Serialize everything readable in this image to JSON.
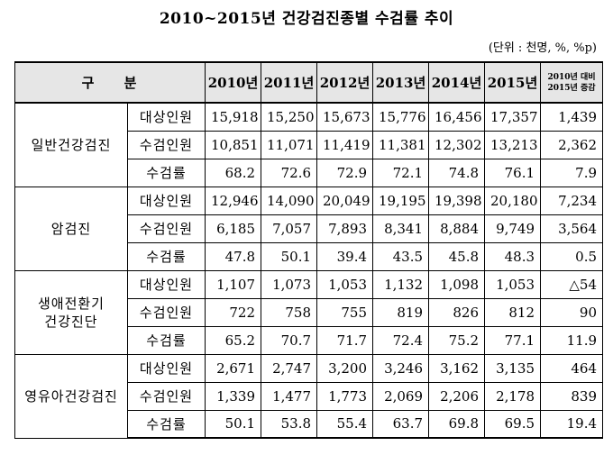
{
  "title": "2010~2015년 건강검진종별 수검률 추이",
  "unit_note": "(단위 : 천명, %, %p)",
  "header": {
    "label": "구 분",
    "years": [
      "2010년",
      "2011년",
      "2012년",
      "2013년",
      "2014년",
      "2015년"
    ],
    "change_line1": "2010년 대비",
    "change_line2": "2015년 증감"
  },
  "groups": [
    {
      "name": "일반건강검진",
      "rows": [
        {
          "metric": "대상인원",
          "values": [
            "15,918",
            "15,250",
            "15,673",
            "15,776",
            "16,456",
            "17,357"
          ],
          "change": "1,439"
        },
        {
          "metric": "수검인원",
          "values": [
            "10,851",
            "11,071",
            "11,419",
            "11,381",
            "12,302",
            "13,213"
          ],
          "change": "2,362"
        },
        {
          "metric": "수검률",
          "values": [
            "68.2",
            "72.6",
            "72.9",
            "72.1",
            "74.8",
            "76.1"
          ],
          "change": "7.9"
        }
      ]
    },
    {
      "name": "암검진",
      "rows": [
        {
          "metric": "대상인원",
          "values": [
            "12,946",
            "14,090",
            "20,049",
            "19,195",
            "19,398",
            "20,180"
          ],
          "change": "7,234"
        },
        {
          "metric": "수검인원",
          "values": [
            "6,185",
            "7,057",
            "7,893",
            "8,341",
            "8,884",
            "9,749"
          ],
          "change": "3,564"
        },
        {
          "metric": "수검률",
          "values": [
            "47.8",
            "50.1",
            "39.4",
            "43.5",
            "45.8",
            "48.3"
          ],
          "change": "0.5"
        }
      ]
    },
    {
      "name_line1": "생애전환기",
      "name_line2": "건강진단",
      "rows": [
        {
          "metric": "대상인원",
          "values": [
            "1,107",
            "1,073",
            "1,053",
            "1,132",
            "1,098",
            "1,053"
          ],
          "change": "△54"
        },
        {
          "metric": "수검인원",
          "values": [
            "722",
            "758",
            "755",
            "819",
            "826",
            "812"
          ],
          "change": "90"
        },
        {
          "metric": "수검률",
          "values": [
            "65.2",
            "70.7",
            "71.7",
            "72.4",
            "75.2",
            "77.1"
          ],
          "change": "11.9"
        }
      ]
    },
    {
      "name": "영유아건강검진",
      "rows": [
        {
          "metric": "대상인원",
          "values": [
            "2,671",
            "2,747",
            "3,200",
            "3,246",
            "3,162",
            "3,135"
          ],
          "change": "464"
        },
        {
          "metric": "수검인원",
          "values": [
            "1,339",
            "1,477",
            "1,773",
            "2,069",
            "2,206",
            "2,178"
          ],
          "change": "839"
        },
        {
          "metric": "수검률",
          "values": [
            "50.1",
            "53.8",
            "55.4",
            "63.7",
            "69.8",
            "69.5"
          ],
          "change": "19.4"
        }
      ]
    }
  ]
}
